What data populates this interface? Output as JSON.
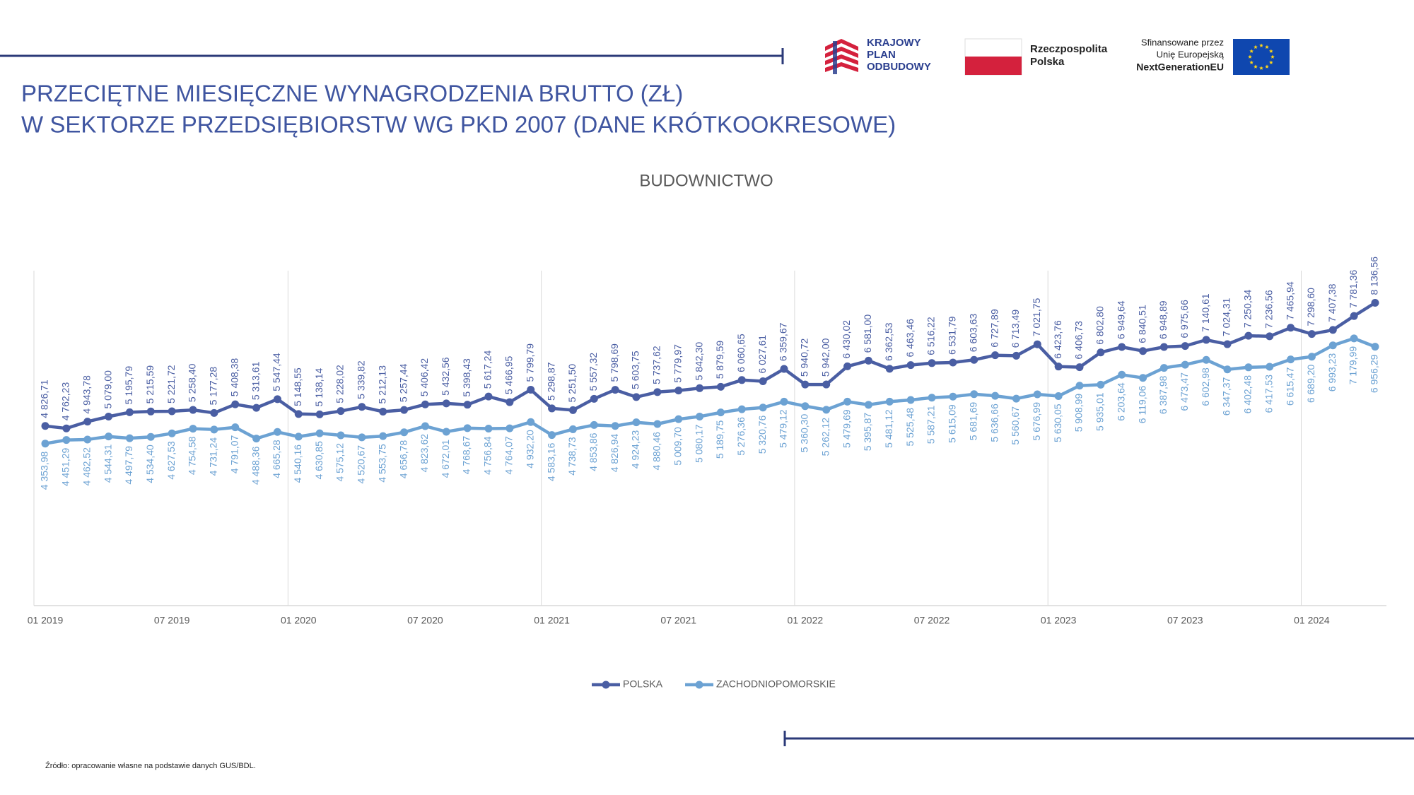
{
  "logos": {
    "kpo": [
      "KRAJOWY",
      "PLAN",
      "ODBUDOWY"
    ],
    "rp": [
      "Rzeczpospolita",
      "Polska"
    ],
    "eu": [
      "Sfinansowane przez",
      "Unię Europejską",
      "NextGenerationEU"
    ]
  },
  "source": "Źródło: opracowanie własne na podstawie danych GUS/BDL.",
  "chart_data": {
    "type": "line",
    "title": [
      "PRZECIĘTNE MIESIĘCZNE WYNAGRODZENIA BRUTTO (ZŁ)",
      "W SEKTORZE PRZEDSIĘBIORSTW WG PKD 2007 (DANE KRÓTKOOKRESOWE)"
    ],
    "subtitle": "BUDOWNICTWO",
    "categories": [
      "01 2019",
      null,
      null,
      null,
      null,
      null,
      "07 2019",
      null,
      null,
      null,
      null,
      null,
      "01 2020",
      null,
      null,
      null,
      null,
      null,
      "07 2020",
      null,
      null,
      null,
      null,
      null,
      "01 2021",
      null,
      null,
      null,
      null,
      null,
      "07 2021",
      null,
      null,
      null,
      null,
      null,
      "01 2022",
      null,
      null,
      null,
      null,
      null,
      "07 2022",
      null,
      null,
      null,
      null,
      null,
      "01 2023",
      null,
      null,
      null,
      null,
      null,
      "07 2023",
      null,
      null,
      null,
      null,
      null,
      "01 2024",
      null,
      null,
      null
    ],
    "ylim": [
      0,
      9000
    ],
    "legend": "bottom",
    "series": [
      {
        "name": "POLSKA",
        "color": "#4a5ea3",
        "values": [
          4826.71,
          4762.23,
          4943.78,
          5079.0,
          5195.79,
          5215.59,
          5221.72,
          5258.4,
          5177.28,
          5408.38,
          5313.61,
          5547.44,
          5148.55,
          5138.14,
          5228.02,
          5339.82,
          5212.13,
          5257.44,
          5406.42,
          5432.56,
          5398.43,
          5617.24,
          5466.95,
          5799.79,
          5298.87,
          5251.5,
          5557.32,
          5798.69,
          5603.75,
          5737.62,
          5779.97,
          5842.3,
          5879.59,
          6060.65,
          6027.61,
          6359.67,
          5940.72,
          5942.0,
          6430.02,
          6581.0,
          6362.53,
          6463.46,
          6516.22,
          6531.79,
          6603.63,
          6727.89,
          6713.49,
          7021.75,
          6423.76,
          6406.73,
          6802.8,
          6949.64,
          6840.51,
          6948.89,
          6975.66,
          7140.61,
          7024.31,
          7250.34,
          7236.56,
          7465.94,
          7298.6,
          7407.38,
          7781.36,
          8136.56
        ],
        "value_labels": [
          "4 826,71",
          "4 762,23",
          "4 943,78",
          "5 079,00",
          "5 195,79",
          "5 215,59",
          "5 221,72",
          "5 258,40",
          "5 177,28",
          "5 408,38",
          "5 313,61",
          "5 547,44",
          "5 148,55",
          "5 138,14",
          "5 228,02",
          "5 339,82",
          "5 212,13",
          "5 257,44",
          "5 406,42",
          "5 432,56",
          "5 398,43",
          "5 617,24",
          "5 466,95",
          "5 799,79",
          "5 298,87",
          "5 251,50",
          "5 557,32",
          "5 798,69",
          "5 603,75",
          "5 737,62",
          "5 779,97",
          "5 842,30",
          "5 879,59",
          "6 060,65",
          "6 027,61",
          "6 359,67",
          "5 940,72",
          "5 942,00",
          "6 430,02",
          "6 581,00",
          "6 362,53",
          "6 463,46",
          "6 516,22",
          "6 531,79",
          "6 603,63",
          "6 727,89",
          "6 713,49",
          "7 021,75",
          "6 423,76",
          "6 406,73",
          "6 802,80",
          "6 949,64",
          "6 840,51",
          "6 948,89",
          "6 975,66",
          "7 140,61",
          "7 024,31",
          "7 250,34",
          "7 236,56",
          "7 465,94",
          "7 298,60",
          "7 407,38",
          "7 781,36",
          "8 136,56"
        ]
      },
      {
        "name": "ZACHODNIOPOMORSKIE",
        "color": "#6ca2d3",
        "values": [
          4353.98,
          4451.29,
          4462.52,
          4544.31,
          4497.79,
          4534.4,
          4627.53,
          4754.58,
          4731.24,
          4791.07,
          4488.36,
          4665.28,
          4540.16,
          4630.85,
          4575.12,
          4520.67,
          4553.75,
          4656.78,
          4823.62,
          4672.01,
          4768.67,
          4756.84,
          4764.07,
          4932.2,
          4583.16,
          4738.73,
          4853.86,
          4826.94,
          4924.23,
          4880.46,
          5009.7,
          5080.17,
          5189.75,
          5276.36,
          5320.76,
          5479.12,
          5360.3,
          5262.12,
          5479.69,
          5395.87,
          5481.12,
          5525.48,
          5587.21,
          5615.09,
          5681.69,
          5636.66,
          5560.67,
          5676.99,
          5630.05,
          5908.99,
          5935.01,
          6203.64,
          6119.06,
          6387.98,
          6473.47,
          6602.98,
          6347.37,
          6402.48,
          6417.53,
          6615.47,
          6689.2,
          6993.23,
          7179.99,
          6956.29
        ],
        "value_labels": [
          "4 353,98",
          "4 451,29",
          "4 462,52",
          "4 544,31",
          "4 497,79",
          "4 534,40",
          "4 627,53",
          "4 754,58",
          "4 731,24",
          "4 791,07",
          "4 488,36",
          "4 665,28",
          "4 540,16",
          "4 630,85",
          "4 575,12",
          "4 520,67",
          "4 553,75",
          "4 656,78",
          "4 823,62",
          "4 672,01",
          "4 768,67",
          "4 756,84",
          "4 764,07",
          "4 932,20",
          "4 583,16",
          "4 738,73",
          "4 853,86",
          "4 826,94",
          "4 924,23",
          "4 880,46",
          "5 009,70",
          "5 080,17",
          "5 189,75",
          "5 276,36",
          "5 320,76",
          "5 479,12",
          "5 360,30",
          "5 262,12",
          "5 479,69",
          "5 395,87",
          "5 481,12",
          "5 525,48",
          "5 587,21",
          "5 615,09",
          "5 681,69",
          "5 636,66",
          "5 560,67",
          "5 676,99",
          "5 630,05",
          "5 908,99",
          "5 935,01",
          "6 203,64",
          "6 119,06",
          "6 387,98",
          "6 473,47",
          "6 602,98",
          "6 347,37",
          "6 402,48",
          "6 417,53",
          "6 615,47",
          "6 689,20",
          "6 993,23",
          "7 179,99",
          "6 956,29"
        ]
      }
    ]
  }
}
